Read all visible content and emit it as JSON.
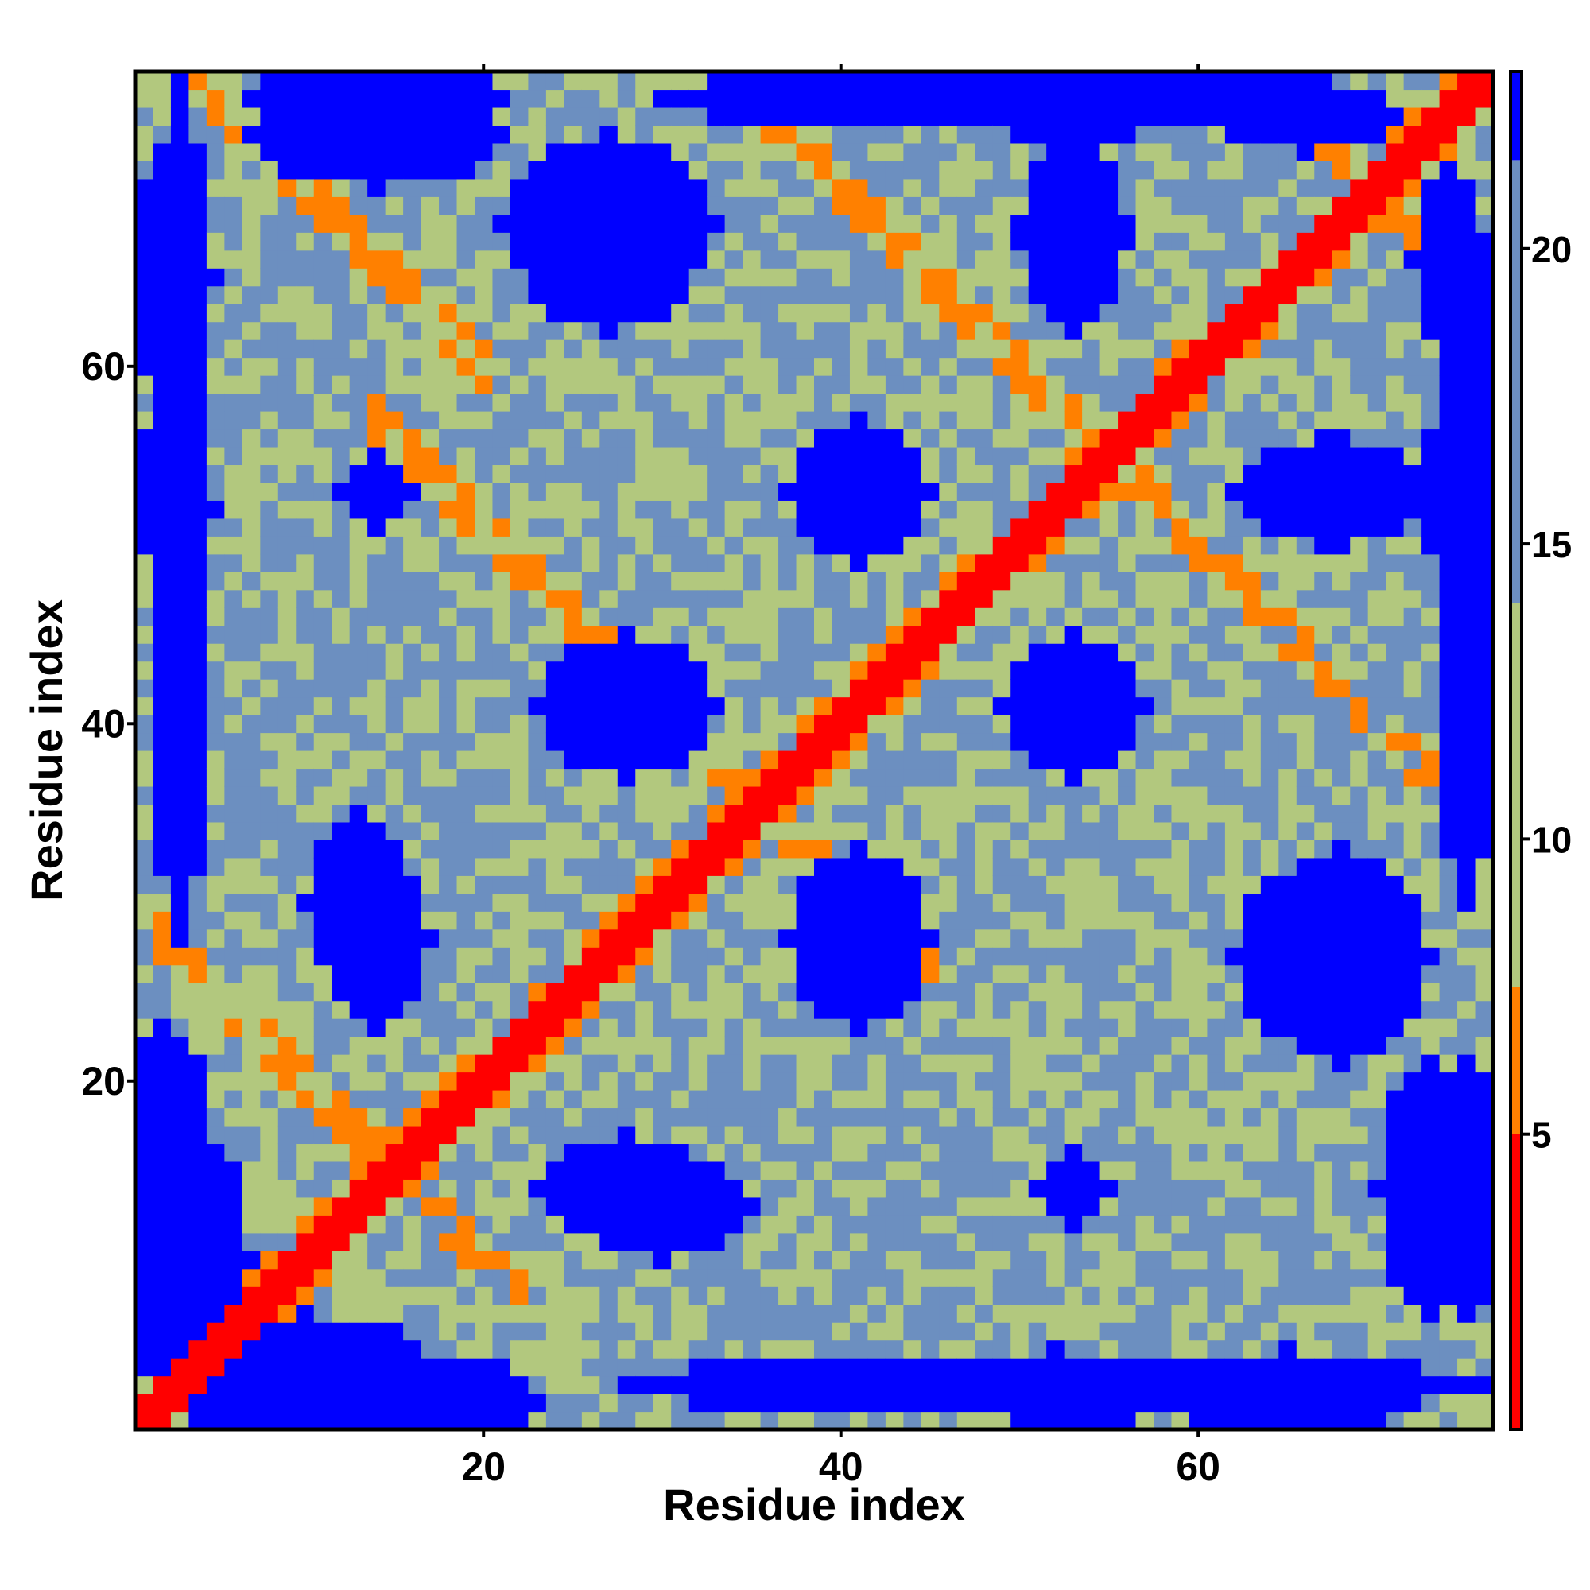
{
  "chart_data": {
    "type": "heatmap",
    "title": "",
    "xlabel": "Residue index",
    "ylabel": "Residue index",
    "n_residues": 76,
    "xlim": [
      0.5,
      76.5
    ],
    "ylim": [
      0.5,
      76.5
    ],
    "x_ticks": [
      20,
      40,
      60
    ],
    "x_tick_labels": [
      "20",
      "40",
      "60"
    ],
    "y_ticks": [
      20,
      40,
      60
    ],
    "y_tick_labels": [
      "20",
      "40",
      "60"
    ],
    "colorbar": {
      "min": 0,
      "max": 23,
      "ticks": [
        5,
        10,
        15,
        20
      ],
      "tick_labels": [
        "5",
        "10",
        "15",
        "20"
      ],
      "bands": [
        {
          "from": 0,
          "to": 5,
          "color": "#ff0000"
        },
        {
          "from": 5,
          "to": 7.5,
          "color": "#ff8000"
        },
        {
          "from": 7.5,
          "to": 14,
          "color": "#b2c87e"
        },
        {
          "from": 14,
          "to": 21.5,
          "color": "#6c8fc0"
        },
        {
          "from": 21.5,
          "to": 23,
          "color": "#0000ff"
        }
      ]
    },
    "diagonal_value": 0,
    "near_diagonal_value": 4.5,
    "secondary_diagonals": [
      {
        "axis": "anti",
        "sum": 30,
        "x_from": 2,
        "x_to": 22,
        "value": 6.5
      },
      {
        "axis": "anti",
        "sum": 71,
        "x_from": 14,
        "x_to": 45,
        "value": 6.5
      },
      {
        "axis": "anti",
        "sum": 110,
        "x_from": 34,
        "x_to": 76,
        "value": 6.5
      },
      {
        "axis": "anti",
        "sum": 140,
        "x_from": 60,
        "x_to": 76,
        "value": 6.5
      },
      {
        "axis": "anti",
        "sum": 80,
        "x_from": 3,
        "x_to": 20,
        "value": 6.5
      }
    ],
    "far_clusters": [
      {
        "x": 27,
        "y": 67,
        "rx": 5,
        "ry": 5,
        "value": 23
      },
      {
        "x": 53,
        "y": 67,
        "rx": 3,
        "ry": 5,
        "value": 23
      },
      {
        "x": 41,
        "y": 53,
        "rx": 4,
        "ry": 4,
        "value": 23
      },
      {
        "x": 68,
        "y": 53,
        "rx": 5,
        "ry": 3,
        "value": 23
      },
      {
        "x": 28,
        "y": 41,
        "rx": 5,
        "ry": 4,
        "value": 23
      },
      {
        "x": 53,
        "y": 41,
        "rx": 4,
        "ry": 4,
        "value": 23
      },
      {
        "x": 13,
        "y": 30,
        "rx": 3,
        "ry": 5,
        "value": 23
      },
      {
        "x": 41,
        "y": 28,
        "rx": 3,
        "ry": 5,
        "value": 23
      },
      {
        "x": 68,
        "y": 27,
        "rx": 5,
        "ry": 6,
        "value": 23
      },
      {
        "x": 28,
        "y": 14,
        "rx": 5,
        "ry": 3,
        "value": 23
      },
      {
        "x": 53,
        "y": 14,
        "rx": 2,
        "ry": 2,
        "value": 23
      },
      {
        "x": 14,
        "y": 73,
        "rx": 7,
        "ry": 3,
        "value": 23
      },
      {
        "x": 53,
        "y": 74,
        "rx": 4,
        "ry": 2,
        "value": 23
      },
      {
        "x": 66,
        "y": 74,
        "rx": 5,
        "ry": 2,
        "value": 23
      },
      {
        "x": 3,
        "y": 52,
        "rx": 2,
        "ry": 24,
        "value": 23
      },
      {
        "x": 3,
        "y": 10,
        "rx": 4,
        "ry": 8,
        "value": 23
      },
      {
        "x": 75,
        "y": 14,
        "rx": 2,
        "ry": 7,
        "value": 23
      },
      {
        "x": 75,
        "y": 50,
        "rx": 2,
        "ry": 20,
        "value": 23
      },
      {
        "x": 16,
        "y": 2,
        "rx": 7,
        "ry": 3,
        "value": 23
      },
      {
        "x": 65,
        "y": 2,
        "rx": 6,
        "ry": 3,
        "value": 23
      },
      {
        "x": 53,
        "y": 2,
        "rx": 4,
        "ry": 2,
        "value": 23
      }
    ],
    "background_range": [
      9,
      20
    ]
  }
}
